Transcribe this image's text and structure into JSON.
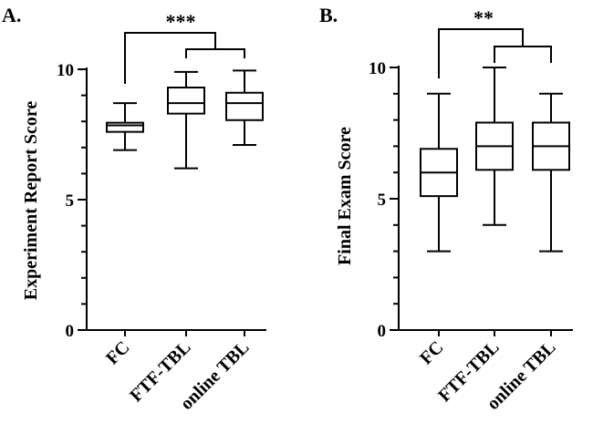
{
  "chart_data": [
    {
      "panel": "A.",
      "type": "boxplot",
      "ylabel": "Experiment Report Score",
      "ylim": [
        0,
        10
      ],
      "yticks": [
        "0",
        "5",
        "10"
      ],
      "categories": [
        "FC",
        "FTF-TBL",
        "online TBL"
      ],
      "boxes": [
        {
          "min": 6.9,
          "q1": 7.6,
          "median": 7.85,
          "q3": 7.95,
          "max": 8.7
        },
        {
          "min": 6.2,
          "q1": 8.3,
          "median": 8.7,
          "q3": 9.3,
          "max": 9.9
        },
        {
          "min": 7.1,
          "q1": 8.05,
          "median": 8.7,
          "q3": 9.1,
          "max": 9.95
        }
      ],
      "significance": "***"
    },
    {
      "panel": "B.",
      "type": "boxplot",
      "ylabel": "Final Exam Score",
      "ylim": [
        0,
        10
      ],
      "yticks": [
        "0",
        "5",
        "10"
      ],
      "categories": [
        "FC",
        "FTF-TBL",
        "online TBL"
      ],
      "boxes": [
        {
          "min": 3,
          "q1": 5.1,
          "median": 6,
          "q3": 6.9,
          "max": 9
        },
        {
          "min": 4,
          "q1": 6.1,
          "median": 7,
          "q3": 7.9,
          "max": 10
        },
        {
          "min": 3,
          "q1": 6.1,
          "median": 7,
          "q3": 7.9,
          "max": 9
        }
      ],
      "significance": "**"
    }
  ]
}
